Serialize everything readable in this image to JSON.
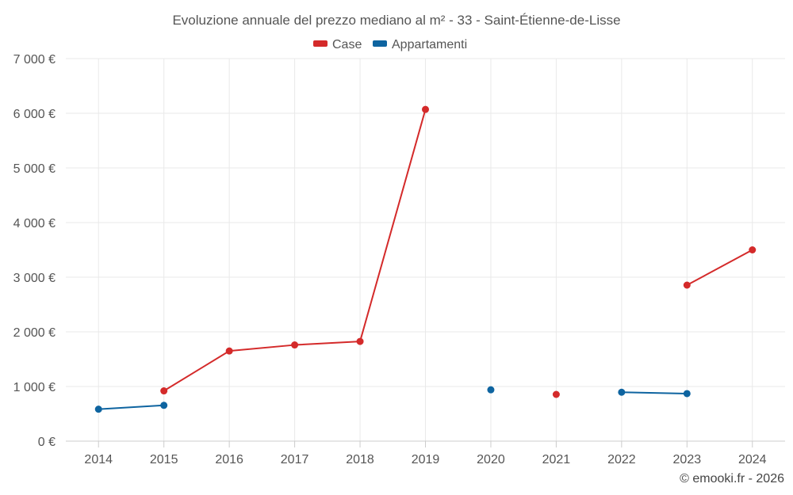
{
  "chart_data": {
    "type": "line",
    "title": "Evoluzione annuale del prezzo mediano al m² - 33 - Saint-Étienne-de-Lisse",
    "categories": [
      "2014",
      "2015",
      "2016",
      "2017",
      "2018",
      "2019",
      "2020",
      "2021",
      "2022",
      "2023",
      "2024"
    ],
    "series": [
      {
        "name": "Case",
        "color": "#d42a2a",
        "values": [
          null,
          920,
          1650,
          1760,
          1825,
          6070,
          null,
          855,
          null,
          2855,
          3500
        ]
      },
      {
        "name": "Appartamenti",
        "color": "#0e64a0",
        "values": [
          585,
          655,
          null,
          null,
          null,
          null,
          940,
          null,
          895,
          870,
          null
        ]
      }
    ],
    "ylim": [
      0,
      7000
    ],
    "yticks": [
      0,
      1000,
      2000,
      3000,
      4000,
      5000,
      6000,
      7000
    ],
    "ytick_labels": [
      "0 €",
      "1 000 €",
      "2 000 €",
      "3 000 €",
      "4 000 €",
      "5 000 €",
      "6 000 €",
      "7 000 €"
    ],
    "xlabel": "",
    "ylabel": "",
    "grid": true,
    "legend_position": "top-center"
  },
  "credit": "© emooki.fr - 2026"
}
